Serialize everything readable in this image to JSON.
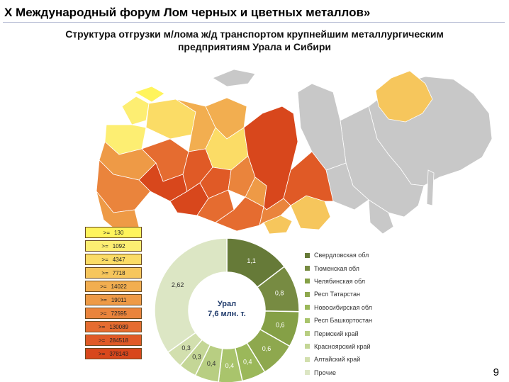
{
  "header": {
    "title": "X Международный форум Лом черных и цветных металлов»"
  },
  "subtitle": "Структура отгрузки м/лома ж/д транспортом крупнейшим металлургическим предприятиям Урала и Сибири",
  "legend": {
    "op": ">=",
    "items": [
      {
        "value": "130",
        "color": "#fff45c"
      },
      {
        "value": "1092",
        "color": "#fdee72"
      },
      {
        "value": "4347",
        "color": "#fbdc66"
      },
      {
        "value": "7718",
        "color": "#f6c65c"
      },
      {
        "value": "14022",
        "color": "#f2ae50"
      },
      {
        "value": "19011",
        "color": "#ee9a46"
      },
      {
        "value": "72595",
        "color": "#ea843c"
      },
      {
        "value": "130089",
        "color": "#e56c30"
      },
      {
        "value": "284518",
        "color": "#e05a26"
      },
      {
        "value": "378143",
        "color": "#d8471c"
      }
    ]
  },
  "colors": {
    "no_data": "#c8c8c8",
    "border": "#ffffff"
  },
  "chart_data": {
    "type": "pie",
    "center_label": [
      "Урал",
      "7,6 млн. т."
    ],
    "categories": [
      "Свердловская обл",
      "Тюменская обл",
      "Челябинская обл",
      "Респ Татарстан",
      "Новосибирская обл",
      "Респ Башкортостан",
      "Пермский край",
      "Красноярский край",
      "Алтайский край",
      "Прочие"
    ],
    "values": [
      1.1,
      0.8,
      0.6,
      0.6,
      0.4,
      0.4,
      0.4,
      0.3,
      0.3,
      2.62
    ],
    "labels": [
      "1,1",
      "0,8",
      "0,6",
      "0,6",
      "0,4",
      "0,4",
      "0,4",
      "0,3",
      "0,3",
      "2,62"
    ],
    "colors": [
      "#667a38",
      "#778b42",
      "#85a046",
      "#8ea84e",
      "#9bb85a",
      "#a9c46c",
      "#b8ce82",
      "#c4d696",
      "#d2dfae",
      "#dce6c4"
    ]
  },
  "page_number": "9"
}
